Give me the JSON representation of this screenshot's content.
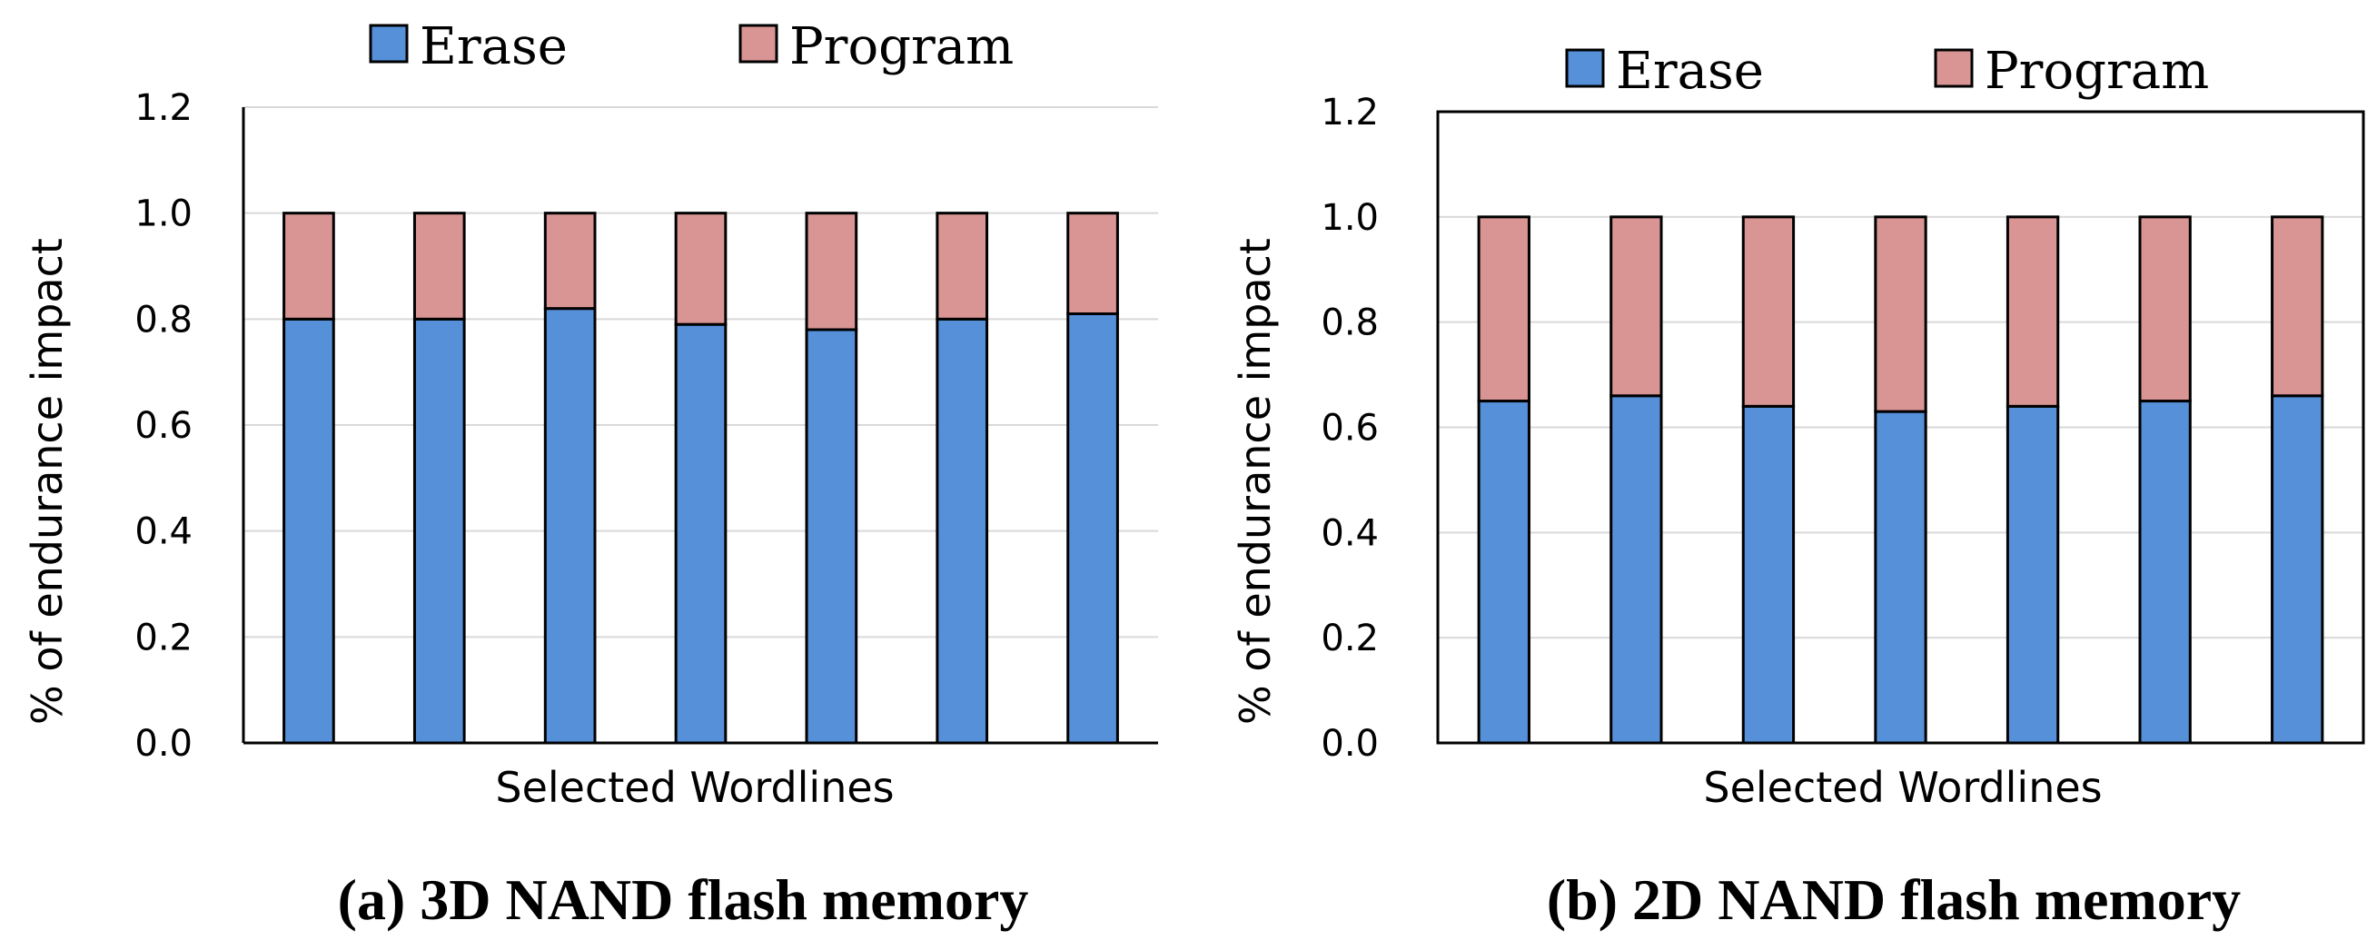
{
  "colors": {
    "erase": "#5590D8",
    "program": "#D99594",
    "stroke": "#000000",
    "grid": "#D9D9D9"
  },
  "chart_data": [
    {
      "type": "bar",
      "stacked": true,
      "caption": "(a) 3D NAND flash memory",
      "xlabel": "Selected Wordlines",
      "ylabel": "% of endurance impact",
      "ylim": [
        0,
        1.2
      ],
      "yticks": [
        "0.0",
        "0.2",
        "0.4",
        "0.6",
        "0.8",
        "1.0",
        "1.2"
      ],
      "grid": true,
      "frame": "left-bottom",
      "legend": [
        "Erase",
        "Program"
      ],
      "series": [
        {
          "name": "Erase",
          "values": [
            0.8,
            0.8,
            0.82,
            0.79,
            0.78,
            0.8,
            0.81
          ]
        },
        {
          "name": "Program",
          "values": [
            0.2,
            0.2,
            0.18,
            0.21,
            0.22,
            0.2,
            0.19
          ]
        }
      ]
    },
    {
      "type": "bar",
      "stacked": true,
      "caption": "(b) 2D NAND flash memory",
      "xlabel": "Selected Wordlines",
      "ylabel": "% of endurance impact",
      "ylim": [
        0,
        1.2
      ],
      "yticks": [
        "0.0",
        "0.2",
        "0.4",
        "0.6",
        "0.8",
        "1.0",
        "1.2"
      ],
      "grid": true,
      "frame": "box",
      "legend": [
        "Erase",
        "Program"
      ],
      "series": [
        {
          "name": "Erase",
          "values": [
            0.65,
            0.66,
            0.64,
            0.63,
            0.64,
            0.65,
            0.66
          ]
        },
        {
          "name": "Program",
          "values": [
            0.35,
            0.34,
            0.36,
            0.37,
            0.36,
            0.35,
            0.34
          ]
        }
      ]
    }
  ]
}
